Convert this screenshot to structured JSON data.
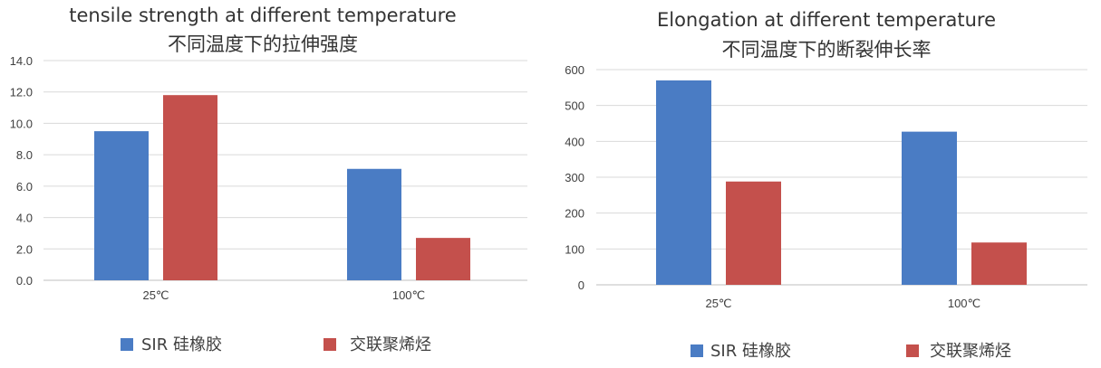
{
  "chart_data": [
    {
      "type": "bar",
      "title": "tensile strength at different temperature",
      "subtitle": "不同温度下的拉伸强度",
      "categories": [
        "25℃",
        "100℃"
      ],
      "series": [
        {
          "name": "SIR 硅橡胶",
          "values": [
            9.5,
            7.1
          ]
        },
        {
          "name": "交联聚烯烃",
          "values": [
            11.8,
            2.7
          ]
        }
      ],
      "ylim": [
        0,
        14
      ],
      "yticks": [
        "0.0",
        "2.0",
        "4.0",
        "6.0",
        "8.0",
        "10.0",
        "12.0",
        "14.0"
      ],
      "grid": true,
      "legend": "bottom",
      "colors": [
        "#4a7cc4",
        "#c4504c"
      ]
    },
    {
      "type": "bar",
      "title": "Elongation at different temperature",
      "subtitle": "不同温度下的断裂伸长率",
      "categories": [
        "25℃",
        "100℃"
      ],
      "series": [
        {
          "name": "SIR 硅橡胶",
          "values": [
            570,
            427
          ]
        },
        {
          "name": "交联聚烯烃",
          "values": [
            288,
            118
          ]
        }
      ],
      "ylim": [
        0,
        600
      ],
      "yticks": [
        "0",
        "100",
        "200",
        "300",
        "400",
        "500",
        "600"
      ],
      "grid": true,
      "legend": "bottom",
      "colors": [
        "#4a7cc4",
        "#c4504c"
      ]
    }
  ]
}
